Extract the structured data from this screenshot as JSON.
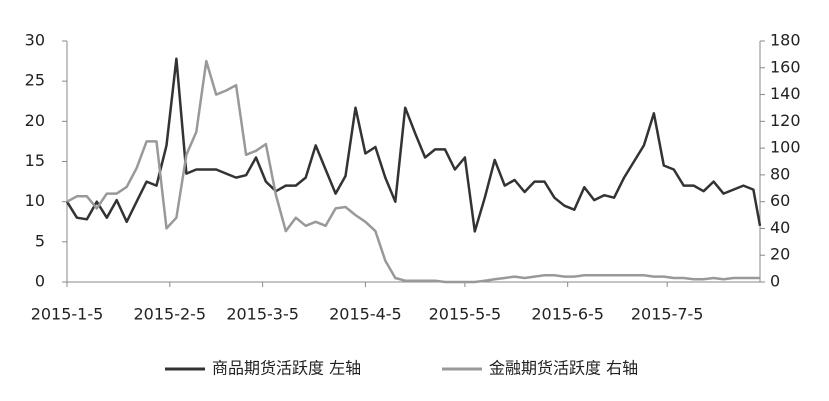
{
  "chart_data": {
    "type": "line",
    "x": [
      "2015-1-5",
      "2015-1-8",
      "2015-1-11",
      "2015-1-14",
      "2015-1-17",
      "2015-1-20",
      "2015-1-23",
      "2015-1-26",
      "2015-1-29",
      "2015-2-1",
      "2015-2-4",
      "2015-2-7",
      "2015-2-10",
      "2015-2-13",
      "2015-2-16",
      "2015-2-19",
      "2015-2-22",
      "2015-2-25",
      "2015-2-28",
      "2015-3-3",
      "2015-3-6",
      "2015-3-9",
      "2015-3-12",
      "2015-3-15",
      "2015-3-18",
      "2015-3-21",
      "2015-3-24",
      "2015-3-27",
      "2015-3-30",
      "2015-4-2",
      "2015-4-5",
      "2015-4-8",
      "2015-4-11",
      "2015-4-14",
      "2015-4-17",
      "2015-4-20",
      "2015-4-23",
      "2015-4-26",
      "2015-4-29",
      "2015-5-2",
      "2015-5-5",
      "2015-5-8",
      "2015-5-11",
      "2015-5-14",
      "2015-5-17",
      "2015-5-20",
      "2015-5-23",
      "2015-5-26",
      "2015-5-29",
      "2015-6-1",
      "2015-6-4",
      "2015-6-7",
      "2015-6-10",
      "2015-6-13",
      "2015-6-16",
      "2015-6-19",
      "2015-6-22",
      "2015-6-25",
      "2015-6-28",
      "2015-7-1",
      "2015-7-4",
      "2015-7-7",
      "2015-7-10",
      "2015-7-13",
      "2015-7-16",
      "2015-7-19",
      "2015-7-22",
      "2015-7-25",
      "2015-7-28",
      "2015-7-31",
      "2015-8-2"
    ],
    "series": [
      {
        "name": "商品期货活跃度 左轴",
        "color": "#333333",
        "axis": "y",
        "values": [
          10,
          8,
          7.8,
          10,
          8,
          10.2,
          7.5,
          10,
          12.5,
          12,
          17,
          27.8,
          13.5,
          14,
          14,
          14,
          13.5,
          13,
          13.3,
          15.5,
          12.5,
          11.3,
          12,
          12,
          13,
          17,
          14,
          11,
          13.2,
          21.7,
          16,
          16.8,
          13,
          10,
          21.7,
          18.5,
          15.5,
          16.5,
          16.5,
          14,
          15.5,
          6.3,
          10.5,
          15.2,
          12,
          12.7,
          11.2,
          12.5,
          12.5,
          10.5,
          9.5,
          9,
          11.8,
          10.2,
          10.8,
          10.5,
          13,
          15,
          17,
          21,
          14.5,
          14,
          12,
          12,
          11.3,
          12.5,
          11,
          11.5,
          12,
          11.5,
          7
        ]
      },
      {
        "name": "金融期货活跃度 右轴",
        "color": "#999999",
        "axis": "y2",
        "values": [
          60,
          64,
          64,
          55,
          66,
          66,
          71,
          85,
          105,
          105,
          40,
          48,
          95,
          112,
          165,
          140,
          143,
          147,
          95,
          98,
          103,
          65,
          38,
          48,
          42,
          45,
          42,
          55,
          56,
          50,
          45,
          38,
          16,
          3,
          1,
          1,
          1,
          1,
          0,
          0,
          0,
          0,
          1,
          2,
          3,
          4,
          3,
          4,
          5,
          5,
          4,
          4,
          5,
          5,
          5,
          5,
          5,
          5,
          5,
          4,
          4,
          3,
          3,
          2,
          2,
          3,
          2,
          3,
          3,
          3,
          3
        ]
      }
    ],
    "xlim": [
      "2015-1-5",
      "2015-8-2"
    ],
    "xticks": [
      "2015-1-5",
      "2015-2-5",
      "2015-3-5",
      "2015-4-5",
      "2015-5-5",
      "2015-6-5",
      "2015-7-5"
    ],
    "ylim": [
      0,
      30
    ],
    "yticks": [
      0,
      5,
      10,
      15,
      20,
      25,
      30
    ],
    "y2lim": [
      0,
      180
    ],
    "y2ticks": [
      0,
      20,
      40,
      60,
      80,
      100,
      120,
      140,
      160,
      180
    ],
    "grid": false,
    "legend": "bottom"
  }
}
